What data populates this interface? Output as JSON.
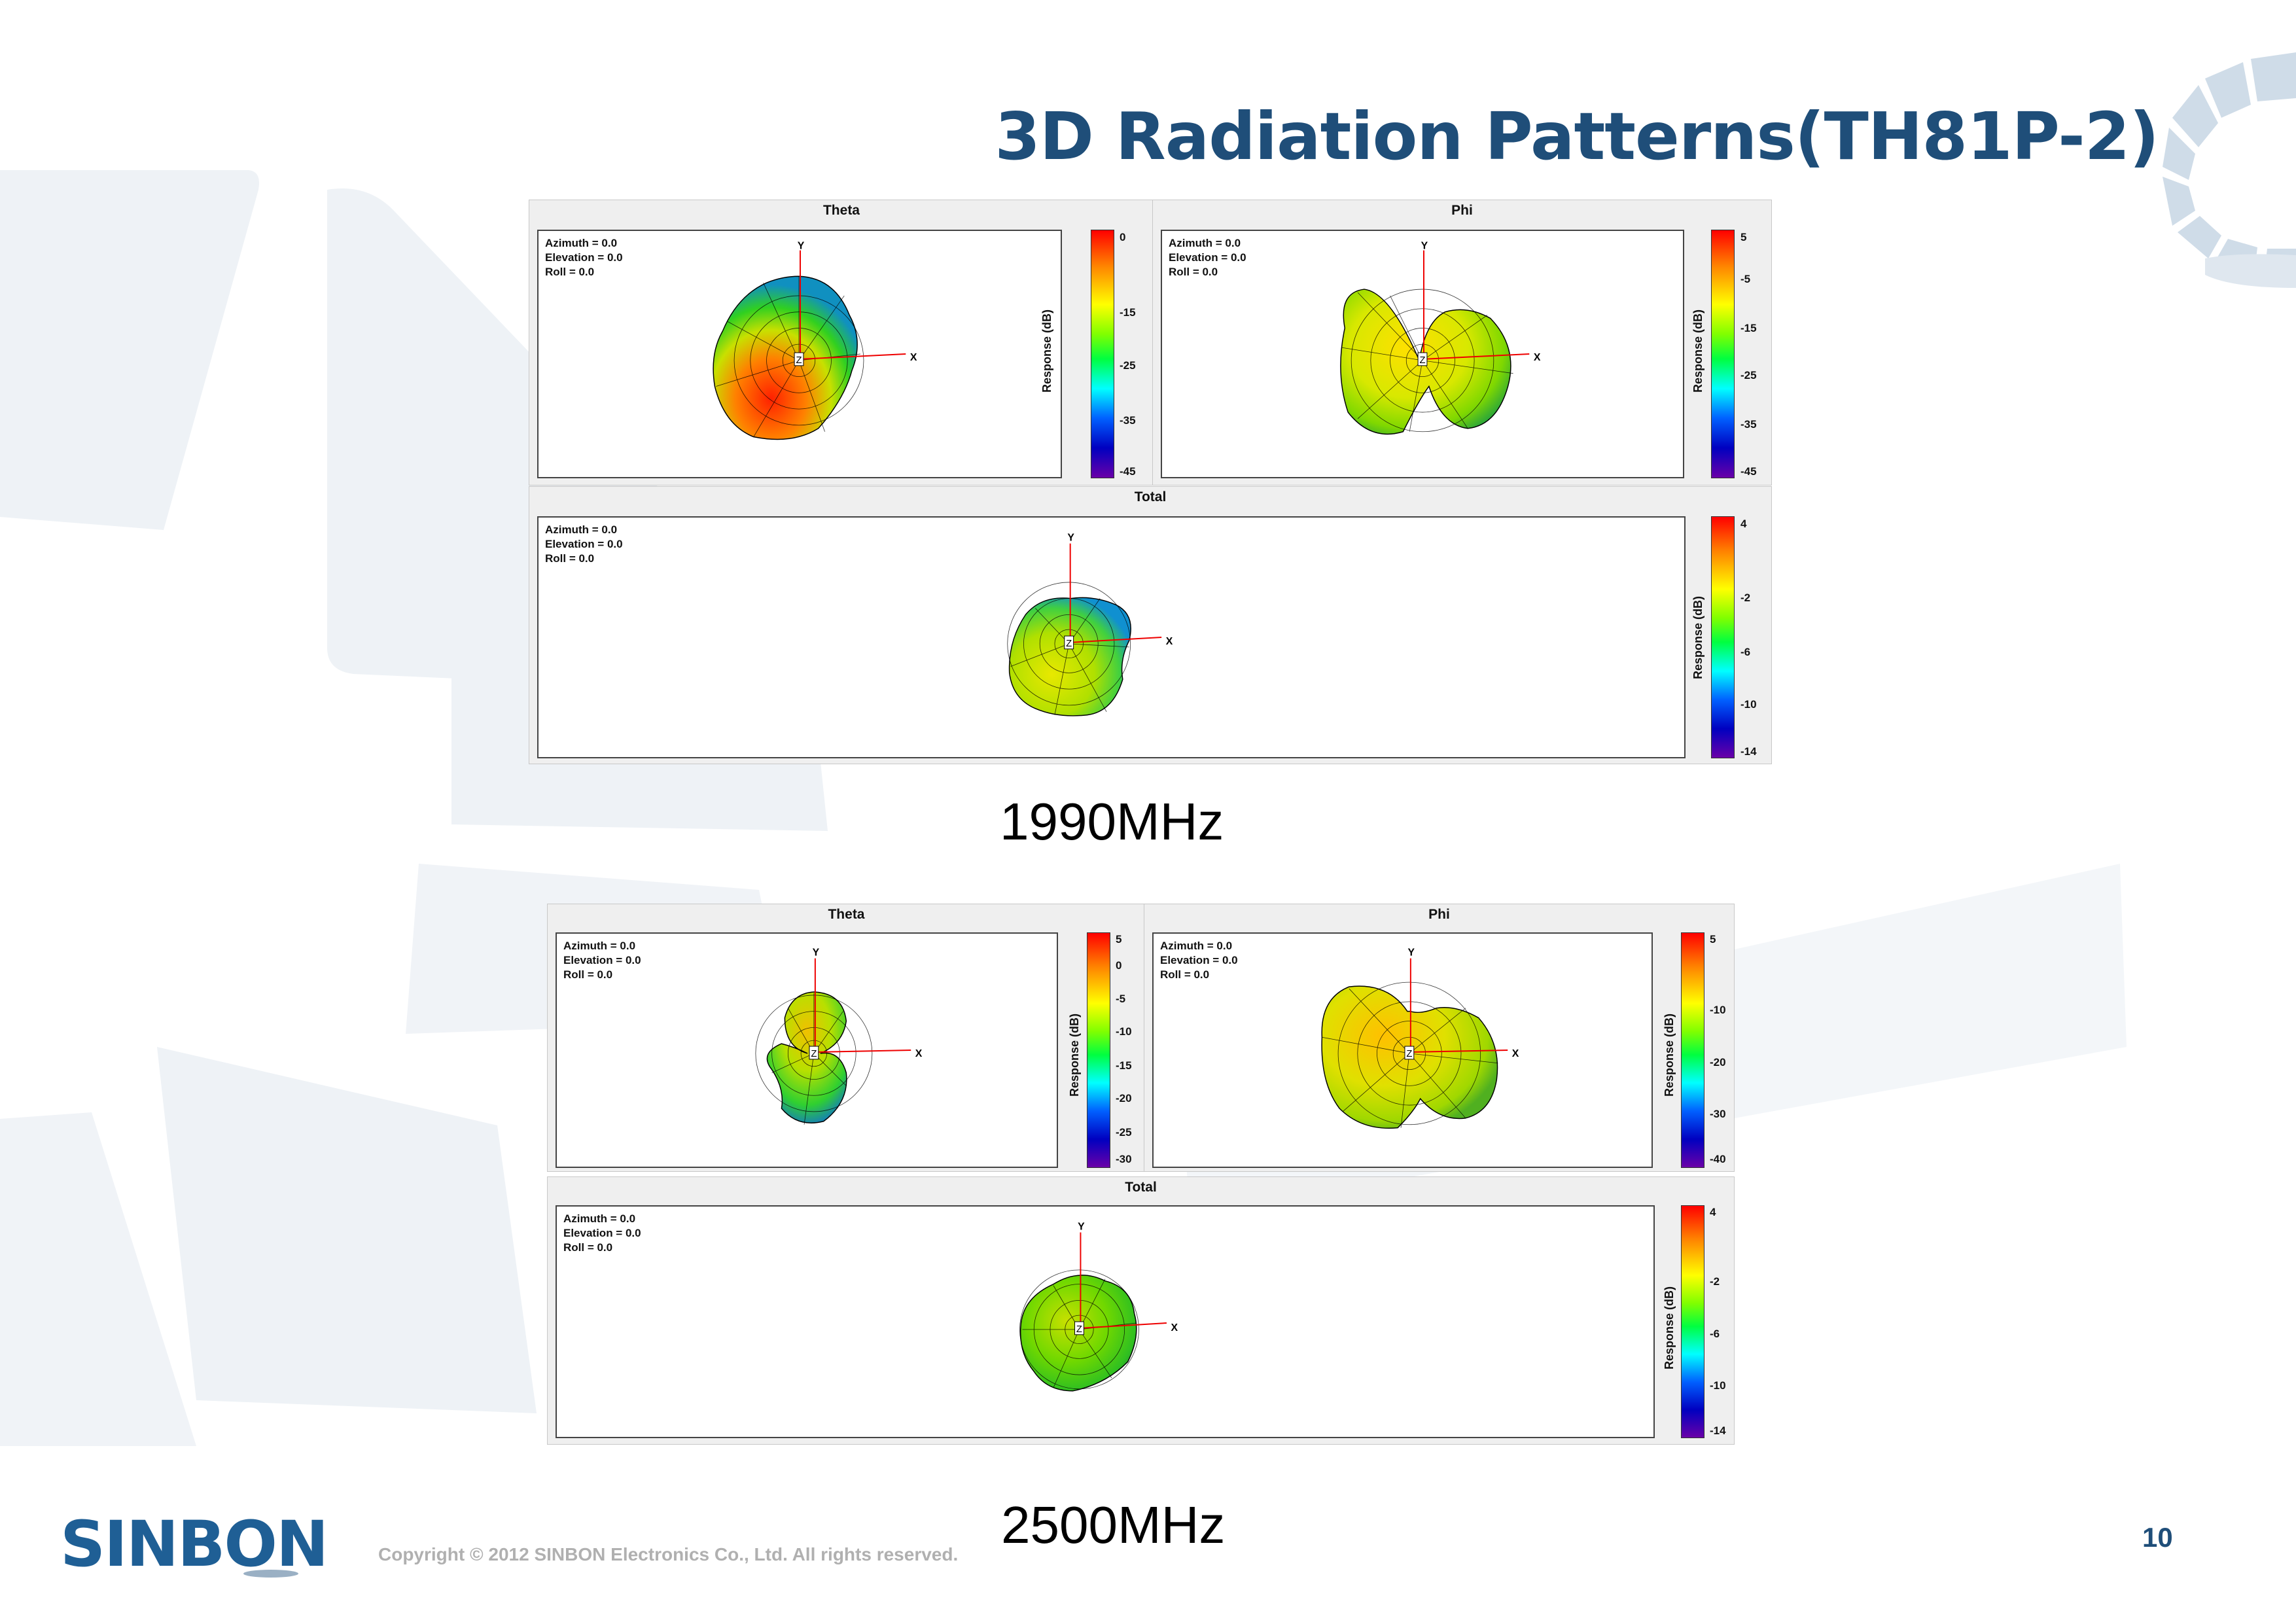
{
  "slide": {
    "title": "3D Radiation Patterns(TH81P-2)",
    "page_number": "10",
    "copyright": "Copyright © 2012 SINBON Electronics Co., Ltd. All rights reserved.",
    "logo_text": "SINBON"
  },
  "colorbar": {
    "axis_label": "Response (dB)"
  },
  "view_info": {
    "azimuth": "Azimuth = 0.0",
    "elevation": "Elevation = 0.0",
    "roll": "Roll = 0.0"
  },
  "axes": {
    "x": "X",
    "y": "Y",
    "z": "Z"
  },
  "groups": [
    {
      "frequency": "1990MHz",
      "panels": [
        {
          "title": "Theta",
          "ticks": [
            "0",
            "-15",
            "-25",
            "-35",
            "-45"
          ]
        },
        {
          "title": "Phi",
          "ticks": [
            "5",
            "-5",
            "-15",
            "-25",
            "-35",
            "-45"
          ]
        },
        {
          "title": "Total",
          "ticks": [
            "4",
            "-2",
            "-6",
            "-10",
            "-14"
          ]
        }
      ]
    },
    {
      "frequency": "2500MHz",
      "panels": [
        {
          "title": "Theta",
          "ticks": [
            "5",
            "0",
            "-5",
            "-10",
            "-15",
            "-20",
            "-25",
            "-30"
          ]
        },
        {
          "title": "Phi",
          "ticks": [
            "5",
            "-10",
            "-20",
            "-30",
            "-40"
          ]
        },
        {
          "title": "Total",
          "ticks": [
            "4",
            "-2",
            "-6",
            "-10",
            "-14"
          ]
        }
      ]
    }
  ],
  "colors": {
    "title": "#1f4e79",
    "decor": "#e6edf4",
    "grid": "#000000"
  }
}
